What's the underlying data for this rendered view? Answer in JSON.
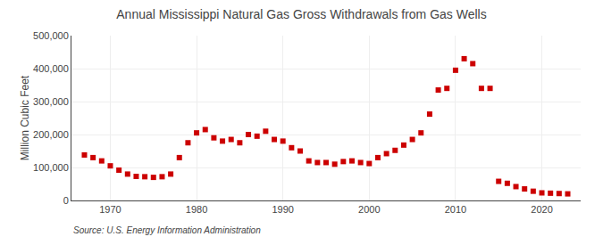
{
  "chart_data": {
    "type": "scatter",
    "title": "Annual Mississippi Natural Gas Gross Withdrawals from Gas Wells",
    "ylabel": "Million Cubic Feet",
    "annotations": [
      "Source: U.S. Energy Information Administration"
    ],
    "x": [
      1967,
      1968,
      1969,
      1970,
      1971,
      1972,
      1973,
      1974,
      1975,
      1976,
      1977,
      1978,
      1979,
      1980,
      1981,
      1982,
      1983,
      1984,
      1985,
      1986,
      1987,
      1988,
      1989,
      1990,
      1991,
      1992,
      1993,
      1994,
      1995,
      1996,
      1997,
      1998,
      1999,
      2000,
      2001,
      2002,
      2003,
      2004,
      2005,
      2006,
      2007,
      2008,
      2009,
      2010,
      2011,
      2012,
      2013,
      2014,
      2015,
      2016,
      2017,
      2018,
      2019,
      2020,
      2021,
      2022,
      2023
    ],
    "values": [
      138000,
      130000,
      120000,
      105000,
      92000,
      80000,
      73000,
      72000,
      70000,
      72000,
      80000,
      130000,
      175000,
      205000,
      215000,
      190000,
      180000,
      185000,
      175000,
      200000,
      195000,
      210000,
      185000,
      180000,
      160000,
      150000,
      120000,
      115000,
      115000,
      110000,
      118000,
      120000,
      115000,
      112000,
      130000,
      142000,
      152000,
      168000,
      185000,
      205000,
      262000,
      335000,
      340000,
      395000,
      430000,
      415000,
      340000,
      340000,
      58000,
      52000,
      42000,
      35000,
      28000,
      23000,
      22000,
      21000,
      20000
    ],
    "color": "#cc0000",
    "marker": "square",
    "xlim": [
      1965.5,
      2024.5
    ],
    "xticks": [
      1970,
      1980,
      1990,
      2000,
      2010,
      2020
    ],
    "ylim": [
      0,
      500000
    ],
    "yticks": [
      0,
      {
        "value": 100000,
        "label": "100,000"
      },
      {
        "value": 200000,
        "label": "200,000"
      },
      {
        "value": 300000,
        "label": "300,000"
      },
      {
        "value": 400000,
        "label": "400,000"
      },
      {
        "value": 500000,
        "label": "500,000"
      }
    ],
    "grid": true
  }
}
